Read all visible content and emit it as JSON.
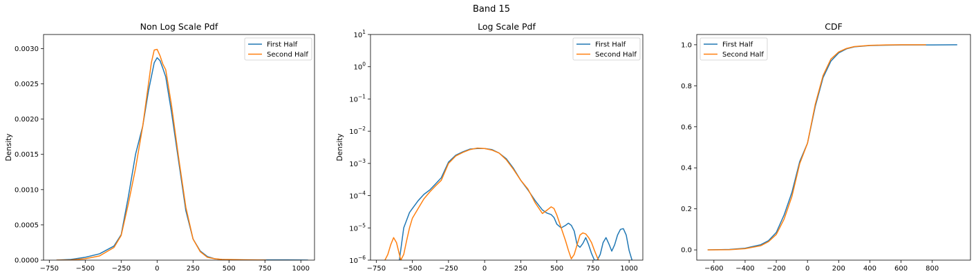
{
  "figure": {
    "suptitle": "Band 15"
  },
  "chart_data": [
    {
      "type": "line",
      "title": "Non Log Scale Pdf",
      "xlabel": "",
      "ylabel": "Density",
      "xlim": [
        -790,
        1095
      ],
      "ylim": [
        0,
        0.0032
      ],
      "yscale": "linear",
      "xticks": [
        -750,
        -500,
        -250,
        0,
        250,
        500,
        750,
        1000
      ],
      "yticks": [
        0.0,
        0.0005,
        0.001,
        0.0015,
        0.002,
        0.0025,
        0.003
      ],
      "ytick_labels": [
        "0.0000",
        "0.0005",
        "0.0010",
        "0.0015",
        "0.0020",
        "0.0025",
        "0.0030"
      ],
      "legend": {
        "position": "top-right"
      },
      "series": [
        {
          "name": "First Half",
          "color": "#1f77b4",
          "x": [
            -700,
            -600,
            -500,
            -400,
            -300,
            -250,
            -200,
            -150,
            -100,
            -60,
            -40,
            -20,
            0,
            20,
            40,
            60,
            100,
            150,
            200,
            250,
            300,
            350,
            400,
            450,
            500,
            600,
            700,
            800,
            900,
            1000,
            1050
          ],
          "y": [
            0.0,
            1e-05,
            4e-05,
            9e-05,
            0.0002,
            0.00036,
            0.0009,
            0.0015,
            0.0019,
            0.0024,
            0.0026,
            0.0028,
            0.00287,
            0.00283,
            0.00272,
            0.0026,
            0.0021,
            0.0014,
            0.0007,
            0.0003,
            0.00013,
            5e-05,
            2e-05,
            1e-05,
            5e-06,
            3e-06,
            2e-06,
            2e-06,
            2e-06,
            1e-06,
            0.0
          ]
        },
        {
          "name": "Second Half",
          "color": "#ff7f0e",
          "x": [
            -700,
            -600,
            -500,
            -400,
            -300,
            -250,
            -200,
            -150,
            -100,
            -60,
            -40,
            -20,
            0,
            20,
            40,
            60,
            100,
            150,
            200,
            250,
            300,
            350,
            400,
            450,
            500,
            600,
            700,
            760
          ],
          "y": [
            0.0,
            3e-06,
            2e-05,
            6e-05,
            0.00018,
            0.00035,
            0.0008,
            0.0013,
            0.0019,
            0.0025,
            0.0028,
            0.00298,
            0.00299,
            0.0029,
            0.00278,
            0.0027,
            0.0022,
            0.00145,
            0.00075,
            0.0003,
            0.00012,
            4e-05,
            2e-05,
            1e-05,
            8e-06,
            5e-06,
            3e-06,
            0.0
          ]
        }
      ]
    },
    {
      "type": "line",
      "title": "Log Scale Pdf",
      "xlabel": "",
      "ylabel": "Density",
      "xlim": [
        -790,
        1095
      ],
      "ylim": [
        1e-06,
        10
      ],
      "yscale": "log",
      "xticks": [
        -750,
        -500,
        -250,
        0,
        250,
        500,
        750,
        1000
      ],
      "yticks": [
        1e-06,
        1e-05,
        0.0001,
        0.001,
        0.01,
        0.1,
        1,
        10
      ],
      "ytick_labels": [
        {
          "base": "10",
          "exp": "−6"
        },
        {
          "base": "10",
          "exp": "−5"
        },
        {
          "base": "10",
          "exp": "−4"
        },
        {
          "base": "10",
          "exp": "−3"
        },
        {
          "base": "10",
          "exp": "−2"
        },
        {
          "base": "10",
          "exp": "−1"
        },
        {
          "base": "10",
          "exp": "0"
        },
        {
          "base": "10",
          "exp": "1"
        }
      ],
      "legend": {
        "position": "top-right"
      },
      "series": [
        {
          "name": "First Half",
          "color": "#1f77b4",
          "x": [
            -590,
            -560,
            -520,
            -500,
            -460,
            -420,
            -380,
            -340,
            -300,
            -250,
            -200,
            -150,
            -100,
            -50,
            0,
            50,
            100,
            150,
            200,
            250,
            300,
            350,
            400,
            430,
            460,
            480,
            500,
            530,
            560,
            580,
            600,
            620,
            640,
            660,
            680,
            700,
            720,
            740,
            760,
            780,
            800,
            820,
            840,
            860,
            880,
            900,
            920,
            940,
            960,
            980,
            1000,
            1020
          ],
          "y": [
            1e-06,
            1e-05,
            3e-05,
            4e-05,
            7e-05,
            0.00011,
            0.00015,
            0.00023,
            0.00036,
            0.0011,
            0.0018,
            0.0023,
            0.0028,
            0.0029,
            0.0029,
            0.0027,
            0.0021,
            0.0014,
            0.0007,
            0.0003,
            0.00015,
            7e-05,
            3.6e-05,
            2.9e-05,
            2.6e-05,
            2.1e-05,
            1.3e-05,
            1e-05,
            1.2e-05,
            1.4e-05,
            1.2e-05,
            8e-06,
            3e-06,
            2.5e-06,
            3.3e-06,
            5e-06,
            3e-06,
            1.6e-06,
            1e-06,
            1e-06,
            1.5e-06,
            3.5e-06,
            5e-06,
            3.2e-06,
            1.9e-06,
            3e-06,
            6e-06,
            9e-06,
            9.5e-06,
            6e-06,
            2e-06,
            1e-06
          ]
        },
        {
          "name": "Second Half",
          "color": "#ff7f0e",
          "x": [
            -690,
            -670,
            -650,
            -630,
            -610,
            -590,
            -580,
            -560,
            -540,
            -520,
            -500,
            -460,
            -420,
            -380,
            -340,
            -300,
            -250,
            -200,
            -150,
            -100,
            -50,
            0,
            50,
            100,
            150,
            200,
            250,
            300,
            350,
            400,
            430,
            460,
            480,
            500,
            530,
            560,
            580,
            600,
            620,
            640,
            660,
            680,
            700,
            720,
            740,
            760,
            780,
            790
          ],
          "y": [
            1e-06,
            1.5e-06,
            3e-06,
            5e-06,
            3.5e-06,
            1.5e-06,
            1e-06,
            1.5e-06,
            4e-06,
            1e-05,
            2e-05,
            4e-05,
            8e-05,
            0.00013,
            0.0002,
            0.0003,
            0.001,
            0.0017,
            0.0022,
            0.0027,
            0.003,
            0.0029,
            0.0026,
            0.0021,
            0.0013,
            0.00065,
            0.0003,
            0.00016,
            6e-05,
            2.8e-05,
            3.5e-05,
            4.5e-05,
            4e-05,
            2.5e-05,
            1e-05,
            4e-06,
            2e-06,
            1.1e-06,
            1.5e-06,
            3e-06,
            6e-06,
            7e-06,
            6.5e-06,
            5e-06,
            3.5e-06,
            2e-06,
            1.2e-06,
            1e-06
          ]
        }
      ]
    },
    {
      "type": "line",
      "title": "CDF",
      "xlabel": "",
      "ylabel": "",
      "xlim": [
        -710,
        1045
      ],
      "ylim": [
        -0.05,
        1.05
      ],
      "yscale": "linear",
      "xticks": [
        -600,
        -400,
        -200,
        0,
        200,
        400,
        600,
        800
      ],
      "yticks": [
        0.0,
        0.2,
        0.4,
        0.6,
        0.8,
        1.0
      ],
      "ytick_labels": [
        "0.0",
        "0.2",
        "0.4",
        "0.6",
        "0.8",
        "1.0"
      ],
      "legend": {
        "position": "top-left"
      },
      "series": [
        {
          "name": "First Half",
          "color": "#1f77b4",
          "x": [
            -640,
            -500,
            -400,
            -300,
            -250,
            -200,
            -150,
            -100,
            -50,
            0,
            50,
            100,
            150,
            200,
            250,
            300,
            400,
            500,
            600,
            800,
            960
          ],
          "y": [
            0.0,
            0.002,
            0.008,
            0.025,
            0.045,
            0.085,
            0.17,
            0.28,
            0.43,
            0.52,
            0.7,
            0.84,
            0.92,
            0.96,
            0.98,
            0.99,
            0.996,
            0.998,
            0.999,
            0.999,
            1.0
          ]
        },
        {
          "name": "Second Half",
          "color": "#ff7f0e",
          "x": [
            -640,
            -500,
            -400,
            -300,
            -250,
            -200,
            -150,
            -100,
            -50,
            0,
            50,
            100,
            150,
            200,
            250,
            300,
            400,
            500,
            600,
            760
          ],
          "y": [
            0.0,
            0.001,
            0.006,
            0.02,
            0.04,
            0.075,
            0.15,
            0.26,
            0.42,
            0.52,
            0.71,
            0.85,
            0.93,
            0.965,
            0.982,
            0.991,
            0.997,
            0.999,
            1.0,
            1.0
          ]
        }
      ]
    }
  ]
}
